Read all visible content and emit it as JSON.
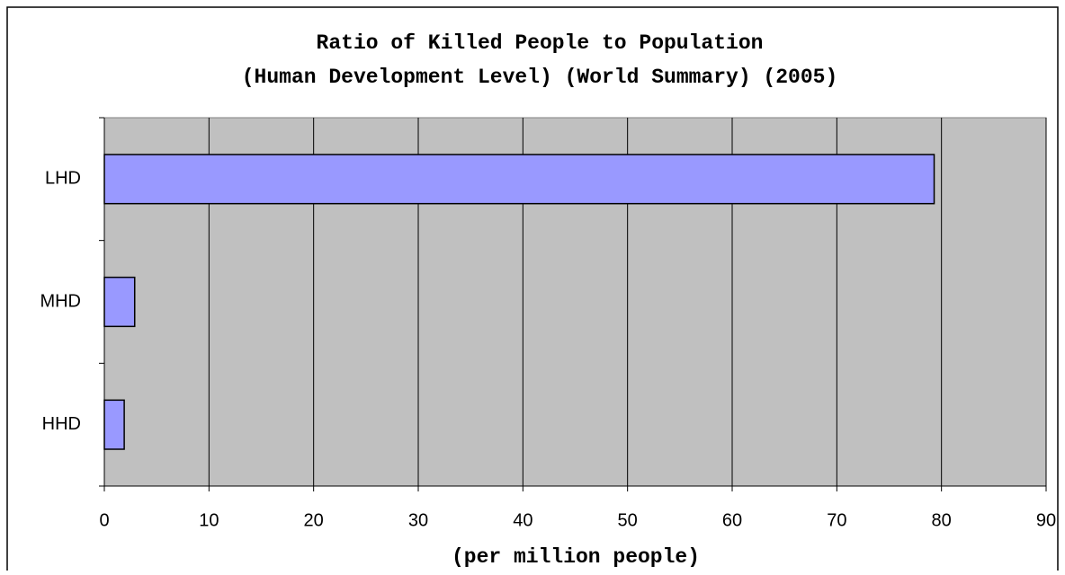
{
  "chart_data": {
    "type": "bar",
    "orientation": "horizontal",
    "title": "Ratio of Killed People to Population",
    "subtitle": "(Human Development Level) (World Summary) (2005)",
    "x_label": "(per million people)",
    "categories": [
      "LHD",
      "MHD",
      "HHD"
    ],
    "values": [
      79.3,
      2.9,
      1.9
    ],
    "color": "#9999ff",
    "xlim": [
      0,
      90
    ],
    "xticks": [
      0,
      10,
      20,
      30,
      40,
      50,
      60,
      70,
      80,
      90
    ],
    "grid": true
  }
}
